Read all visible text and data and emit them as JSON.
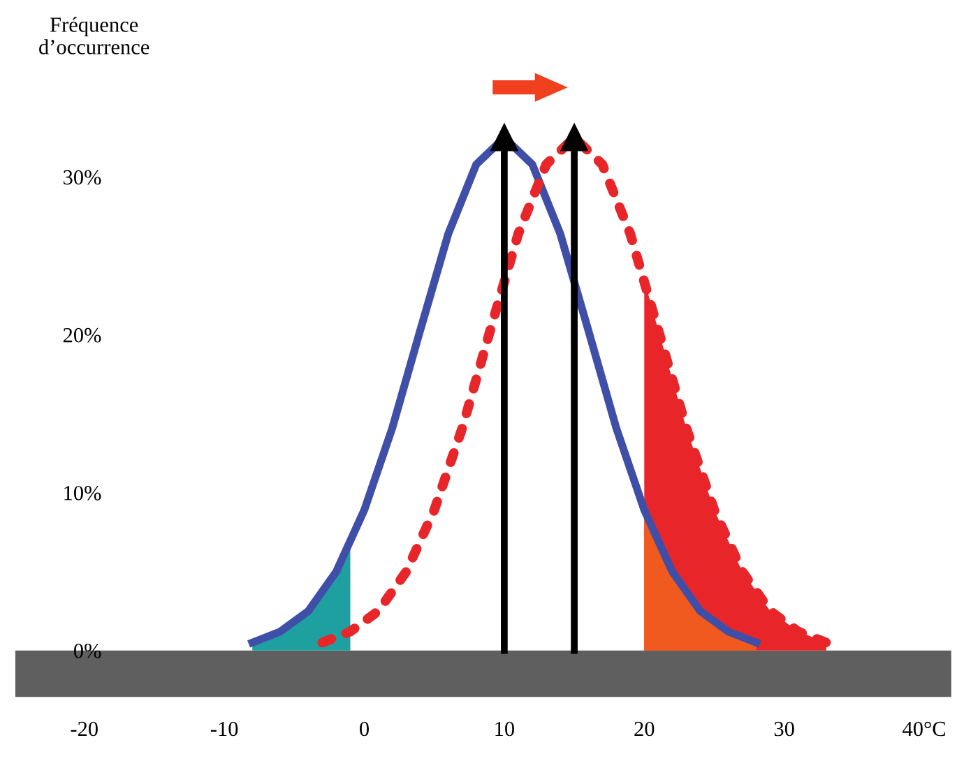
{
  "chart_data": {
    "type": "line",
    "ylabel": "Fréquence\nd’occurrence",
    "xlim": [
      -25,
      42
    ],
    "ylim": [
      -3,
      37.5
    ],
    "xticks": [
      -20,
      -10,
      0,
      10,
      20,
      30,
      {
        "value": 40,
        "label": "40°C"
      }
    ],
    "yticks": [
      {
        "value": 0,
        "label": "0%"
      },
      {
        "value": 10,
        "label": "10%"
      },
      {
        "value": 20,
        "label": "20%"
      },
      {
        "value": 30,
        "label": "30%"
      }
    ],
    "grid": false,
    "legend": false,
    "series": [
      {
        "color": "#3f4fa8",
        "line_style": "solid",
        "x": [
          -8,
          -6,
          -4,
          -2,
          0,
          2,
          4,
          6,
          8,
          10,
          12,
          14,
          16,
          18,
          20,
          22,
          24,
          26,
          28
        ],
        "values": [
          0.5,
          1.2,
          2.5,
          5.0,
          8.9,
          14.1,
          20.3,
          26.4,
          30.8,
          32.5,
          30.8,
          26.4,
          20.3,
          14.1,
          8.9,
          5.0,
          2.5,
          1.2,
          0.5
        ]
      },
      {
        "color": "#e8262a",
        "line_style": "dotted",
        "x": [
          -3,
          -1,
          1,
          3,
          5,
          7,
          9,
          11,
          13,
          15,
          17,
          19,
          21,
          23,
          25,
          27,
          29,
          31,
          33
        ],
        "values": [
          0.5,
          1.2,
          2.5,
          5.0,
          8.9,
          14.1,
          20.3,
          26.4,
          30.8,
          32.5,
          30.8,
          26.4,
          20.3,
          14.1,
          8.9,
          5.0,
          2.5,
          1.2,
          0.5
        ]
      },
      {
        "type": "area",
        "color": "#1fa0a0",
        "x": [
          -8,
          -6,
          -4,
          -2,
          -1
        ],
        "values": [
          0.5,
          1.2,
          2.5,
          5.0,
          6.7
        ]
      },
      {
        "type": "area",
        "color": "#e8262a",
        "x": [
          20,
          21,
          23,
          25,
          27,
          29,
          31,
          33
        ],
        "values": [
          23.5,
          20.3,
          14.1,
          8.9,
          5.0,
          2.5,
          1.2,
          0.5
        ]
      },
      {
        "type": "area",
        "color": "#f05a1e",
        "x": [
          20,
          22,
          24,
          26,
          28
        ],
        "values": [
          8.9,
          5.0,
          2.5,
          1.2,
          0.5
        ]
      }
    ],
    "ref_lines": [
      {
        "axis": "x",
        "value": 10,
        "color": "#000000"
      },
      {
        "axis": "x",
        "value": 15,
        "color": "#000000"
      }
    ],
    "bands": [
      {
        "axis": "y",
        "from": -3,
        "to": 0,
        "color": "#5f5f5f"
      }
    ]
  }
}
